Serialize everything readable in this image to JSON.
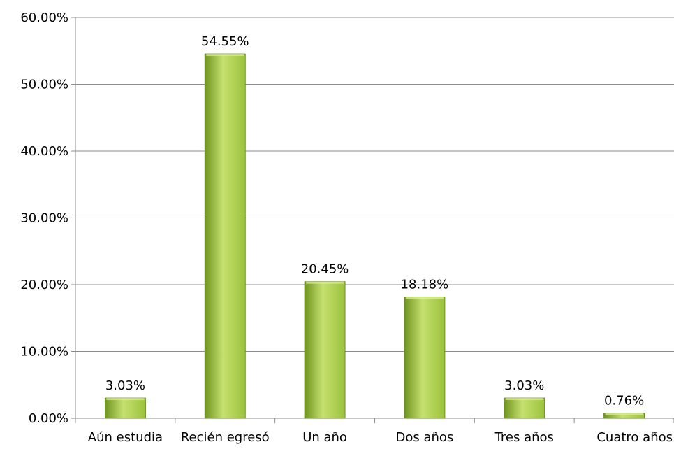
{
  "chart_data": {
    "type": "bar",
    "categories": [
      "Aún estudia",
      "Recién egresó",
      "Un año",
      "Dos años",
      "Tres años",
      "Cuatro años"
    ],
    "values": [
      3.03,
      54.55,
      20.45,
      18.18,
      3.03,
      0.76
    ],
    "value_labels": [
      "3.03%",
      "54.55%",
      "20.45%",
      "18.18%",
      "3.03%",
      "0.76%"
    ],
    "y_ticks": [
      0,
      10,
      20,
      30,
      40,
      50,
      60
    ],
    "y_tick_labels": [
      "0.00%",
      "10.00%",
      "20.00%",
      "30.00%",
      "40.00%",
      "50.00%",
      "60.00%"
    ],
    "ylim": [
      0,
      60
    ],
    "title": "",
    "xlabel": "",
    "ylabel": "",
    "grid": true,
    "legend": "none",
    "colors": {
      "bar_light": "#c5e06e",
      "bar_mid": "#9bc23c",
      "bar_dark": "#6f9420",
      "bar_edge": "#5d7f18",
      "grid": "#8c8c8c",
      "axis": "#8c8c8c"
    }
  }
}
